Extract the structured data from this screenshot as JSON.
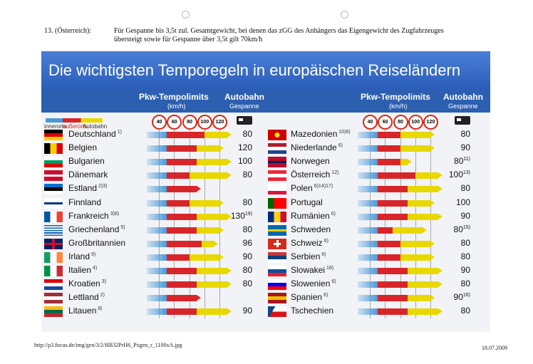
{
  "note": {
    "label": "13. (Österreich):",
    "line1": "Für Gespanne bis 3,5t zul. Gesamtgewicht, bei denen das zGG des Anhängers das Eigengewicht des Zugfahrzeuges",
    "line2": "übersteigt sowie für Gespanne über 3,5t gilt  70km/h"
  },
  "footer": {
    "url": "http://p3.focus.de/img/gen/3/2/HB32PrH6_Pxgen_r_1100xA.jpg",
    "date": "18.07.2009"
  },
  "header": {
    "pkw_title": "Pkw-Tempolimits",
    "pkw_unit": "(km/h)",
    "autobahn_title": "Autobahn",
    "autobahn_sub": "Gespanne",
    "legend_innerorts": "innerorts",
    "legend_ausserorts": "außerorts",
    "legend_autobahn": "Autobahn"
  },
  "colors": {
    "innerorts": "#4a9ad8",
    "ausserorts": "#d8252a",
    "autobahn": "#e8d800",
    "banner": "#2a5db8"
  },
  "chart_data": {
    "type": "bar",
    "title": "Die wichtigsten Temporegeln in europäischen Reiseländern",
    "ticks": [
      40,
      60,
      80,
      100,
      120
    ],
    "units": "km/h",
    "series": [
      {
        "name": "innerorts"
      },
      {
        "name": "außerorts"
      },
      {
        "name": "Autobahn"
      }
    ],
    "countries": [
      {
        "name": "Deutschland",
        "note": "1)",
        "flag": "de",
        "inner": 50,
        "outer": 100,
        "autobahn": 130,
        "gespann": "80",
        "gnote": ""
      },
      {
        "name": "Belgien",
        "note": "",
        "flag": "be",
        "inner": 50,
        "outer": 90,
        "autobahn": 120,
        "gespann": "120",
        "gnote": ""
      },
      {
        "name": "Bulgarien",
        "note": "",
        "flag": "bg",
        "inner": 50,
        "outer": 90,
        "autobahn": 130,
        "gespann": "100",
        "gnote": ""
      },
      {
        "name": "Dänemark",
        "note": "",
        "flag": "dk",
        "inner": 50,
        "outer": 80,
        "autobahn": 130,
        "gespann": "80",
        "gnote": ""
      },
      {
        "name": "Estland",
        "note": "2)3)",
        "flag": "ee",
        "inner": 50,
        "outer": 90,
        "autobahn": null,
        "gespann": "",
        "gnote": ""
      },
      {
        "name": "Finnland",
        "note": "",
        "flag": "fi",
        "inner": 50,
        "outer": 80,
        "autobahn": 120,
        "gespann": "80",
        "gnote": ""
      },
      {
        "name": "Frankreich",
        "note": "3)8)",
        "flag": "fr",
        "inner": 50,
        "outer": 90,
        "autobahn": 130,
        "gespann": "130",
        "gnote": "19)"
      },
      {
        "name": "Griechenland",
        "note": "5)",
        "flag": "gr",
        "inner": 50,
        "outer": 90,
        "autobahn": 120,
        "gespann": "80",
        "gnote": ""
      },
      {
        "name": "Großbritannien",
        "note": "",
        "flag": "gb",
        "inner": 50,
        "outer": 96,
        "autobahn": 112,
        "gespann": "96",
        "gnote": ""
      },
      {
        "name": "Irland",
        "note": "9)",
        "flag": "ie",
        "inner": 50,
        "outer": 80,
        "autobahn": 120,
        "gespann": "90",
        "gnote": ""
      },
      {
        "name": "Italien",
        "note": "4)",
        "flag": "it",
        "inner": 50,
        "outer": 90,
        "autobahn": 130,
        "gespann": "80",
        "gnote": ""
      },
      {
        "name": "Kroatien",
        "note": "3)",
        "flag": "hr",
        "inner": 50,
        "outer": 90,
        "autobahn": 130,
        "gespann": "80",
        "gnote": ""
      },
      {
        "name": "Lettland",
        "note": "2)",
        "flag": "lv",
        "inner": 50,
        "outer": 90,
        "autobahn": null,
        "gespann": "",
        "gnote": ""
      },
      {
        "name": "Litauen",
        "note": "8)",
        "flag": "lt",
        "inner": 50,
        "outer": 90,
        "autobahn": 130,
        "gespann": "90",
        "gnote": ""
      },
      {
        "name": "Mazedonien",
        "note": "10)6)",
        "flag": "mk",
        "inner": 50,
        "outer": 80,
        "autobahn": 120,
        "gespann": "80",
        "gnote": ""
      },
      {
        "name": "Niederlande",
        "note": "6)",
        "flag": "nl",
        "inner": 50,
        "outer": 80,
        "autobahn": 120,
        "gespann": "90",
        "gnote": ""
      },
      {
        "name": "Norwegen",
        "note": "",
        "flag": "no",
        "inner": 50,
        "outer": 80,
        "autobahn": 90,
        "gespann": "80",
        "gnote": "11)"
      },
      {
        "name": "Österreich",
        "note": "12)",
        "flag": "at",
        "inner": 50,
        "outer": 100,
        "autobahn": 130,
        "gespann": "100",
        "gnote": "13)"
      },
      {
        "name": "Polen",
        "note": "6)14)17)",
        "flag": "pl",
        "inner": 50,
        "outer": 90,
        "autobahn": 130,
        "gespann": "80",
        "gnote": ""
      },
      {
        "name": "Portugal",
        "note": "",
        "flag": "pt",
        "inner": 50,
        "outer": 90,
        "autobahn": 120,
        "gespann": "100",
        "gnote": ""
      },
      {
        "name": "Rumänien",
        "note": "6)",
        "flag": "ro",
        "inner": 50,
        "outer": 90,
        "autobahn": 130,
        "gespann": "90",
        "gnote": ""
      },
      {
        "name": "Schweden",
        "note": "",
        "flag": "se",
        "inner": 50,
        "outer": 70,
        "autobahn": 110,
        "gespann": "80",
        "gnote": "15)"
      },
      {
        "name": "Schweiz",
        "note": "6)",
        "flag": "ch",
        "inner": 50,
        "outer": 80,
        "autobahn": 120,
        "gespann": "80",
        "gnote": ""
      },
      {
        "name": "Serbien",
        "note": "6)",
        "flag": "rs",
        "inner": 50,
        "outer": 80,
        "autobahn": 120,
        "gespann": "80",
        "gnote": ""
      },
      {
        "name": "Slowakei",
        "note": "18)",
        "flag": "sk",
        "inner": 50,
        "outer": 90,
        "autobahn": 130,
        "gespann": "90",
        "gnote": ""
      },
      {
        "name": "Slowenien",
        "note": "6)",
        "flag": "si",
        "inner": 50,
        "outer": 90,
        "autobahn": 130,
        "gespann": "80",
        "gnote": ""
      },
      {
        "name": "Spanien",
        "note": "6)",
        "flag": "es",
        "inner": 50,
        "outer": 90,
        "autobahn": 120,
        "gespann": "90",
        "gnote": "16)"
      },
      {
        "name": "Tschechien",
        "note": "",
        "flag": "cz",
        "inner": 50,
        "outer": 90,
        "autobahn": 130,
        "gespann": "80",
        "gnote": ""
      }
    ]
  }
}
